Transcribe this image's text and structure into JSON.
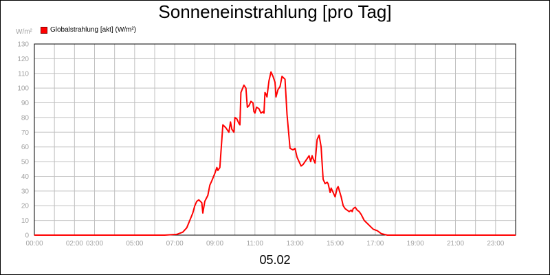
{
  "chart_data": {
    "type": "line",
    "title": "Sonneneinstrahlung [pro Tag]",
    "ylabel": "W/m²",
    "xlabel": "",
    "footer": "05.02",
    "ylim": [
      0,
      130
    ],
    "xlim_hours": [
      0,
      24
    ],
    "grid": true,
    "legend_position": "top-left",
    "yticks": [
      0,
      10,
      20,
      30,
      40,
      50,
      60,
      70,
      80,
      90,
      100,
      110,
      120,
      130
    ],
    "xtick_labels": [
      {
        "hour": 0,
        "label": "00:00"
      },
      {
        "hour": 2,
        "label": "02:00"
      },
      {
        "hour": 3,
        "label": "03:00"
      },
      {
        "hour": 5,
        "label": "05:00"
      },
      {
        "hour": 7,
        "label": "07:00"
      },
      {
        "hour": 9,
        "label": "09:00"
      },
      {
        "hour": 11,
        "label": "11:00"
      },
      {
        "hour": 13,
        "label": "13:00"
      },
      {
        "hour": 15,
        "label": "15:00"
      },
      {
        "hour": 17,
        "label": "17:00"
      },
      {
        "hour": 19,
        "label": "19:00"
      },
      {
        "hour": 21,
        "label": "21:00"
      },
      {
        "hour": 23,
        "label": "23:00"
      }
    ],
    "xgrid_hours": [
      1,
      2,
      3,
      4,
      5,
      6,
      7,
      8,
      9,
      10,
      11,
      12,
      13,
      14,
      15,
      16,
      17,
      18,
      19,
      20,
      21,
      22,
      23
    ],
    "series": [
      {
        "name": "Globalstrahlung [akt] (W/m²)",
        "color": "#ff0000",
        "points": [
          [
            0,
            0
          ],
          [
            6.5,
            0
          ],
          [
            7.1,
            0.5
          ],
          [
            7.4,
            2
          ],
          [
            7.6,
            5
          ],
          [
            7.75,
            10
          ],
          [
            7.9,
            15
          ],
          [
            8.0,
            20
          ],
          [
            8.1,
            23
          ],
          [
            8.2,
            24
          ],
          [
            8.35,
            22
          ],
          [
            8.4,
            15
          ],
          [
            8.5,
            23
          ],
          [
            8.65,
            27
          ],
          [
            8.75,
            34
          ],
          [
            8.85,
            37
          ],
          [
            9.0,
            42
          ],
          [
            9.1,
            46
          ],
          [
            9.15,
            44
          ],
          [
            9.25,
            46
          ],
          [
            9.4,
            75
          ],
          [
            9.55,
            73
          ],
          [
            9.7,
            70
          ],
          [
            9.78,
            77
          ],
          [
            9.85,
            72
          ],
          [
            9.95,
            70
          ],
          [
            10.0,
            80
          ],
          [
            10.1,
            79
          ],
          [
            10.2,
            76
          ],
          [
            10.25,
            75
          ],
          [
            10.3,
            97
          ],
          [
            10.45,
            102
          ],
          [
            10.55,
            100
          ],
          [
            10.62,
            87
          ],
          [
            10.7,
            88
          ],
          [
            10.8,
            91
          ],
          [
            10.9,
            90
          ],
          [
            10.95,
            84
          ],
          [
            11.0,
            83
          ],
          [
            11.08,
            87
          ],
          [
            11.2,
            86
          ],
          [
            11.3,
            83
          ],
          [
            11.4,
            84
          ],
          [
            11.45,
            83
          ],
          [
            11.5,
            97
          ],
          [
            11.55,
            96
          ],
          [
            11.6,
            94
          ],
          [
            11.7,
            105
          ],
          [
            11.8,
            111
          ],
          [
            11.9,
            108
          ],
          [
            12.0,
            104
          ],
          [
            12.05,
            94
          ],
          [
            12.15,
            99
          ],
          [
            12.25,
            101
          ],
          [
            12.35,
            108
          ],
          [
            12.5,
            106
          ],
          [
            12.6,
            82
          ],
          [
            12.75,
            59
          ],
          [
            12.9,
            58
          ],
          [
            13.0,
            59
          ],
          [
            13.1,
            53
          ],
          [
            13.2,
            50
          ],
          [
            13.3,
            47
          ],
          [
            13.4,
            48
          ],
          [
            13.5,
            50
          ],
          [
            13.6,
            52
          ],
          [
            13.7,
            54
          ],
          [
            13.78,
            50
          ],
          [
            13.85,
            54
          ],
          [
            13.9,
            52
          ],
          [
            14.0,
            49
          ],
          [
            14.1,
            65
          ],
          [
            14.2,
            68
          ],
          [
            14.3,
            60
          ],
          [
            14.4,
            38
          ],
          [
            14.5,
            35
          ],
          [
            14.6,
            36
          ],
          [
            14.65,
            35
          ],
          [
            14.75,
            29
          ],
          [
            14.8,
            32
          ],
          [
            14.9,
            29
          ],
          [
            15.0,
            26
          ],
          [
            15.1,
            32
          ],
          [
            15.15,
            33
          ],
          [
            15.3,
            26
          ],
          [
            15.4,
            20
          ],
          [
            15.5,
            18
          ],
          [
            15.6,
            17
          ],
          [
            15.7,
            16
          ],
          [
            15.8,
            17
          ],
          [
            15.85,
            16
          ],
          [
            15.9,
            18
          ],
          [
            16.0,
            19
          ],
          [
            16.1,
            17
          ],
          [
            16.2,
            16
          ],
          [
            16.3,
            14
          ],
          [
            16.45,
            10
          ],
          [
            16.6,
            8
          ],
          [
            16.75,
            6
          ],
          [
            16.9,
            4
          ],
          [
            17.1,
            3
          ],
          [
            17.3,
            1
          ],
          [
            17.6,
            0
          ],
          [
            24.0,
            0
          ]
        ]
      }
    ]
  }
}
